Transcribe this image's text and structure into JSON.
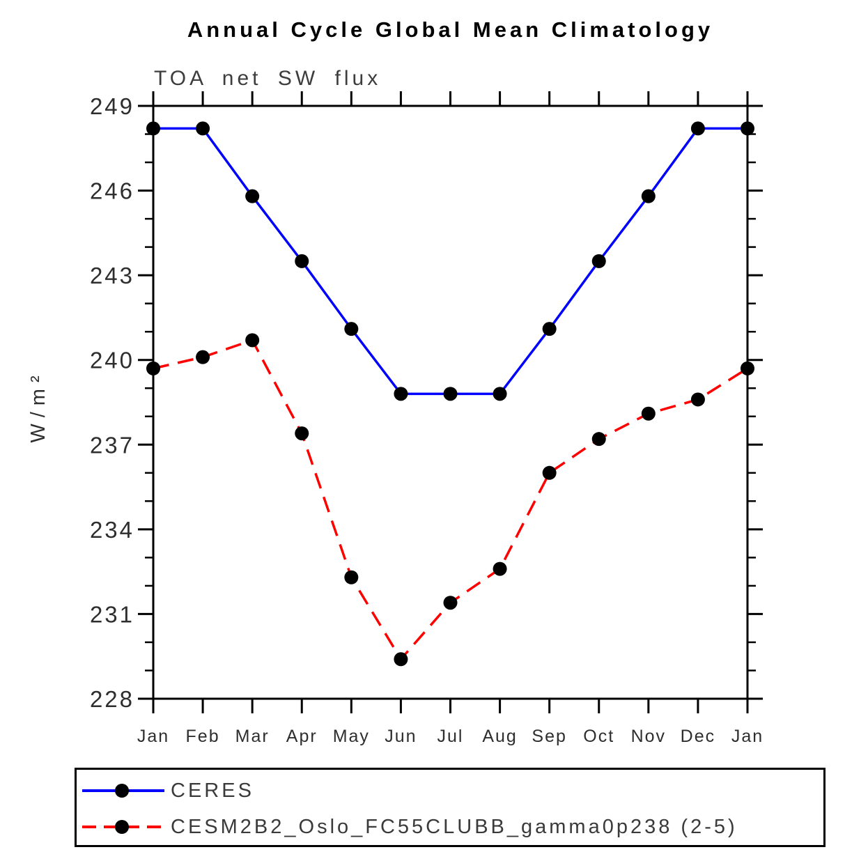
{
  "chart_data": {
    "type": "line",
    "title": "Annual Cycle Global Mean Climatology",
    "subtitle": "TOA net SW flux",
    "ylabel": "W/m²",
    "xlabel": "",
    "x_categories": [
      "Jan",
      "Feb",
      "Mar",
      "Apr",
      "May",
      "Jun",
      "Jul",
      "Aug",
      "Sep",
      "Oct",
      "Nov",
      "Dec",
      "Jan"
    ],
    "ylim": [
      228,
      249
    ],
    "ytick_major_step": 3,
    "ytick_minor_step": 1,
    "ytick_major_labels": [
      "228",
      "231",
      "234",
      "237",
      "240",
      "243",
      "246",
      "249"
    ],
    "grid": false,
    "legend_position": "bottom-box",
    "series": [
      {
        "name": "CERES",
        "color": "#0000ff",
        "line_style": "solid",
        "marker": "filled-circle",
        "marker_color": "#000000",
        "values": [
          248.2,
          248.2,
          245.8,
          243.5,
          241.1,
          238.8,
          238.8,
          238.8,
          241.1,
          243.5,
          245.8,
          248.2,
          248.2
        ]
      },
      {
        "name": "CESM2B2_Oslo_FC55CLUBB_gamma0p238 (2-5)",
        "color": "#ff0000",
        "line_style": "dashed",
        "marker": "filled-circle",
        "marker_color": "#000000",
        "values": [
          239.7,
          240.1,
          240.7,
          237.4,
          232.3,
          229.4,
          231.4,
          232.6,
          236.0,
          237.2,
          238.1,
          238.6,
          239.7
        ]
      }
    ],
    "axis_color": "#000000",
    "tick_label_color": "#2e2e2e"
  }
}
